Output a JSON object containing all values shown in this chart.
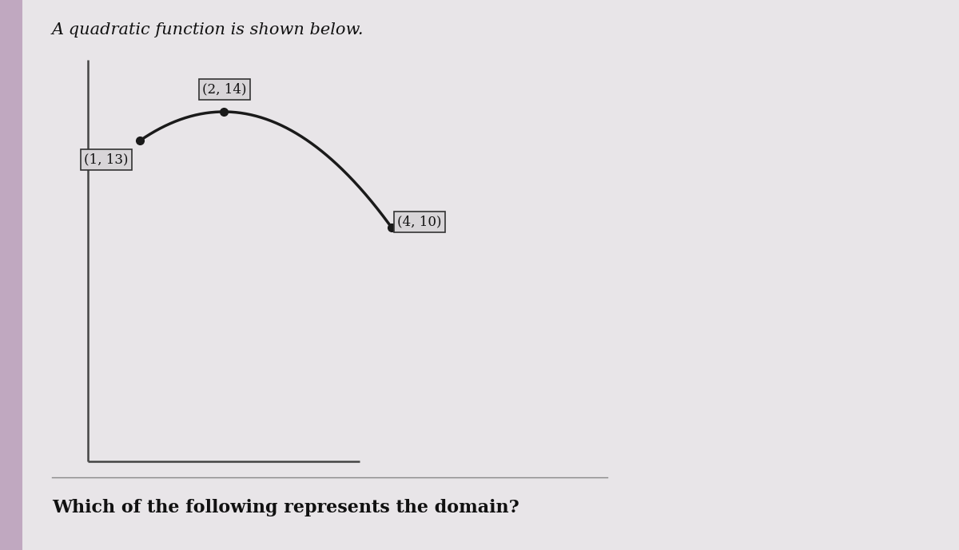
{
  "title": "A quadratic function is shown below.",
  "question": "Which of the following represents the domain?",
  "point_labels": [
    "(1, 13)",
    "(2, 14)",
    "(4, 10)"
  ],
  "bg_color": "#e8e4e8",
  "main_bg": "#e0dce0",
  "curve_color": "#1a1a1a",
  "axis_color": "#444444",
  "label_box_facecolor": "#d8d4d8",
  "label_box_edgecolor": "#333333",
  "title_fontsize": 15,
  "question_fontsize": 16,
  "label_fontsize": 12,
  "left_strip_color": "#c0a8c0",
  "title_color": "#111111",
  "question_color": "#111111"
}
